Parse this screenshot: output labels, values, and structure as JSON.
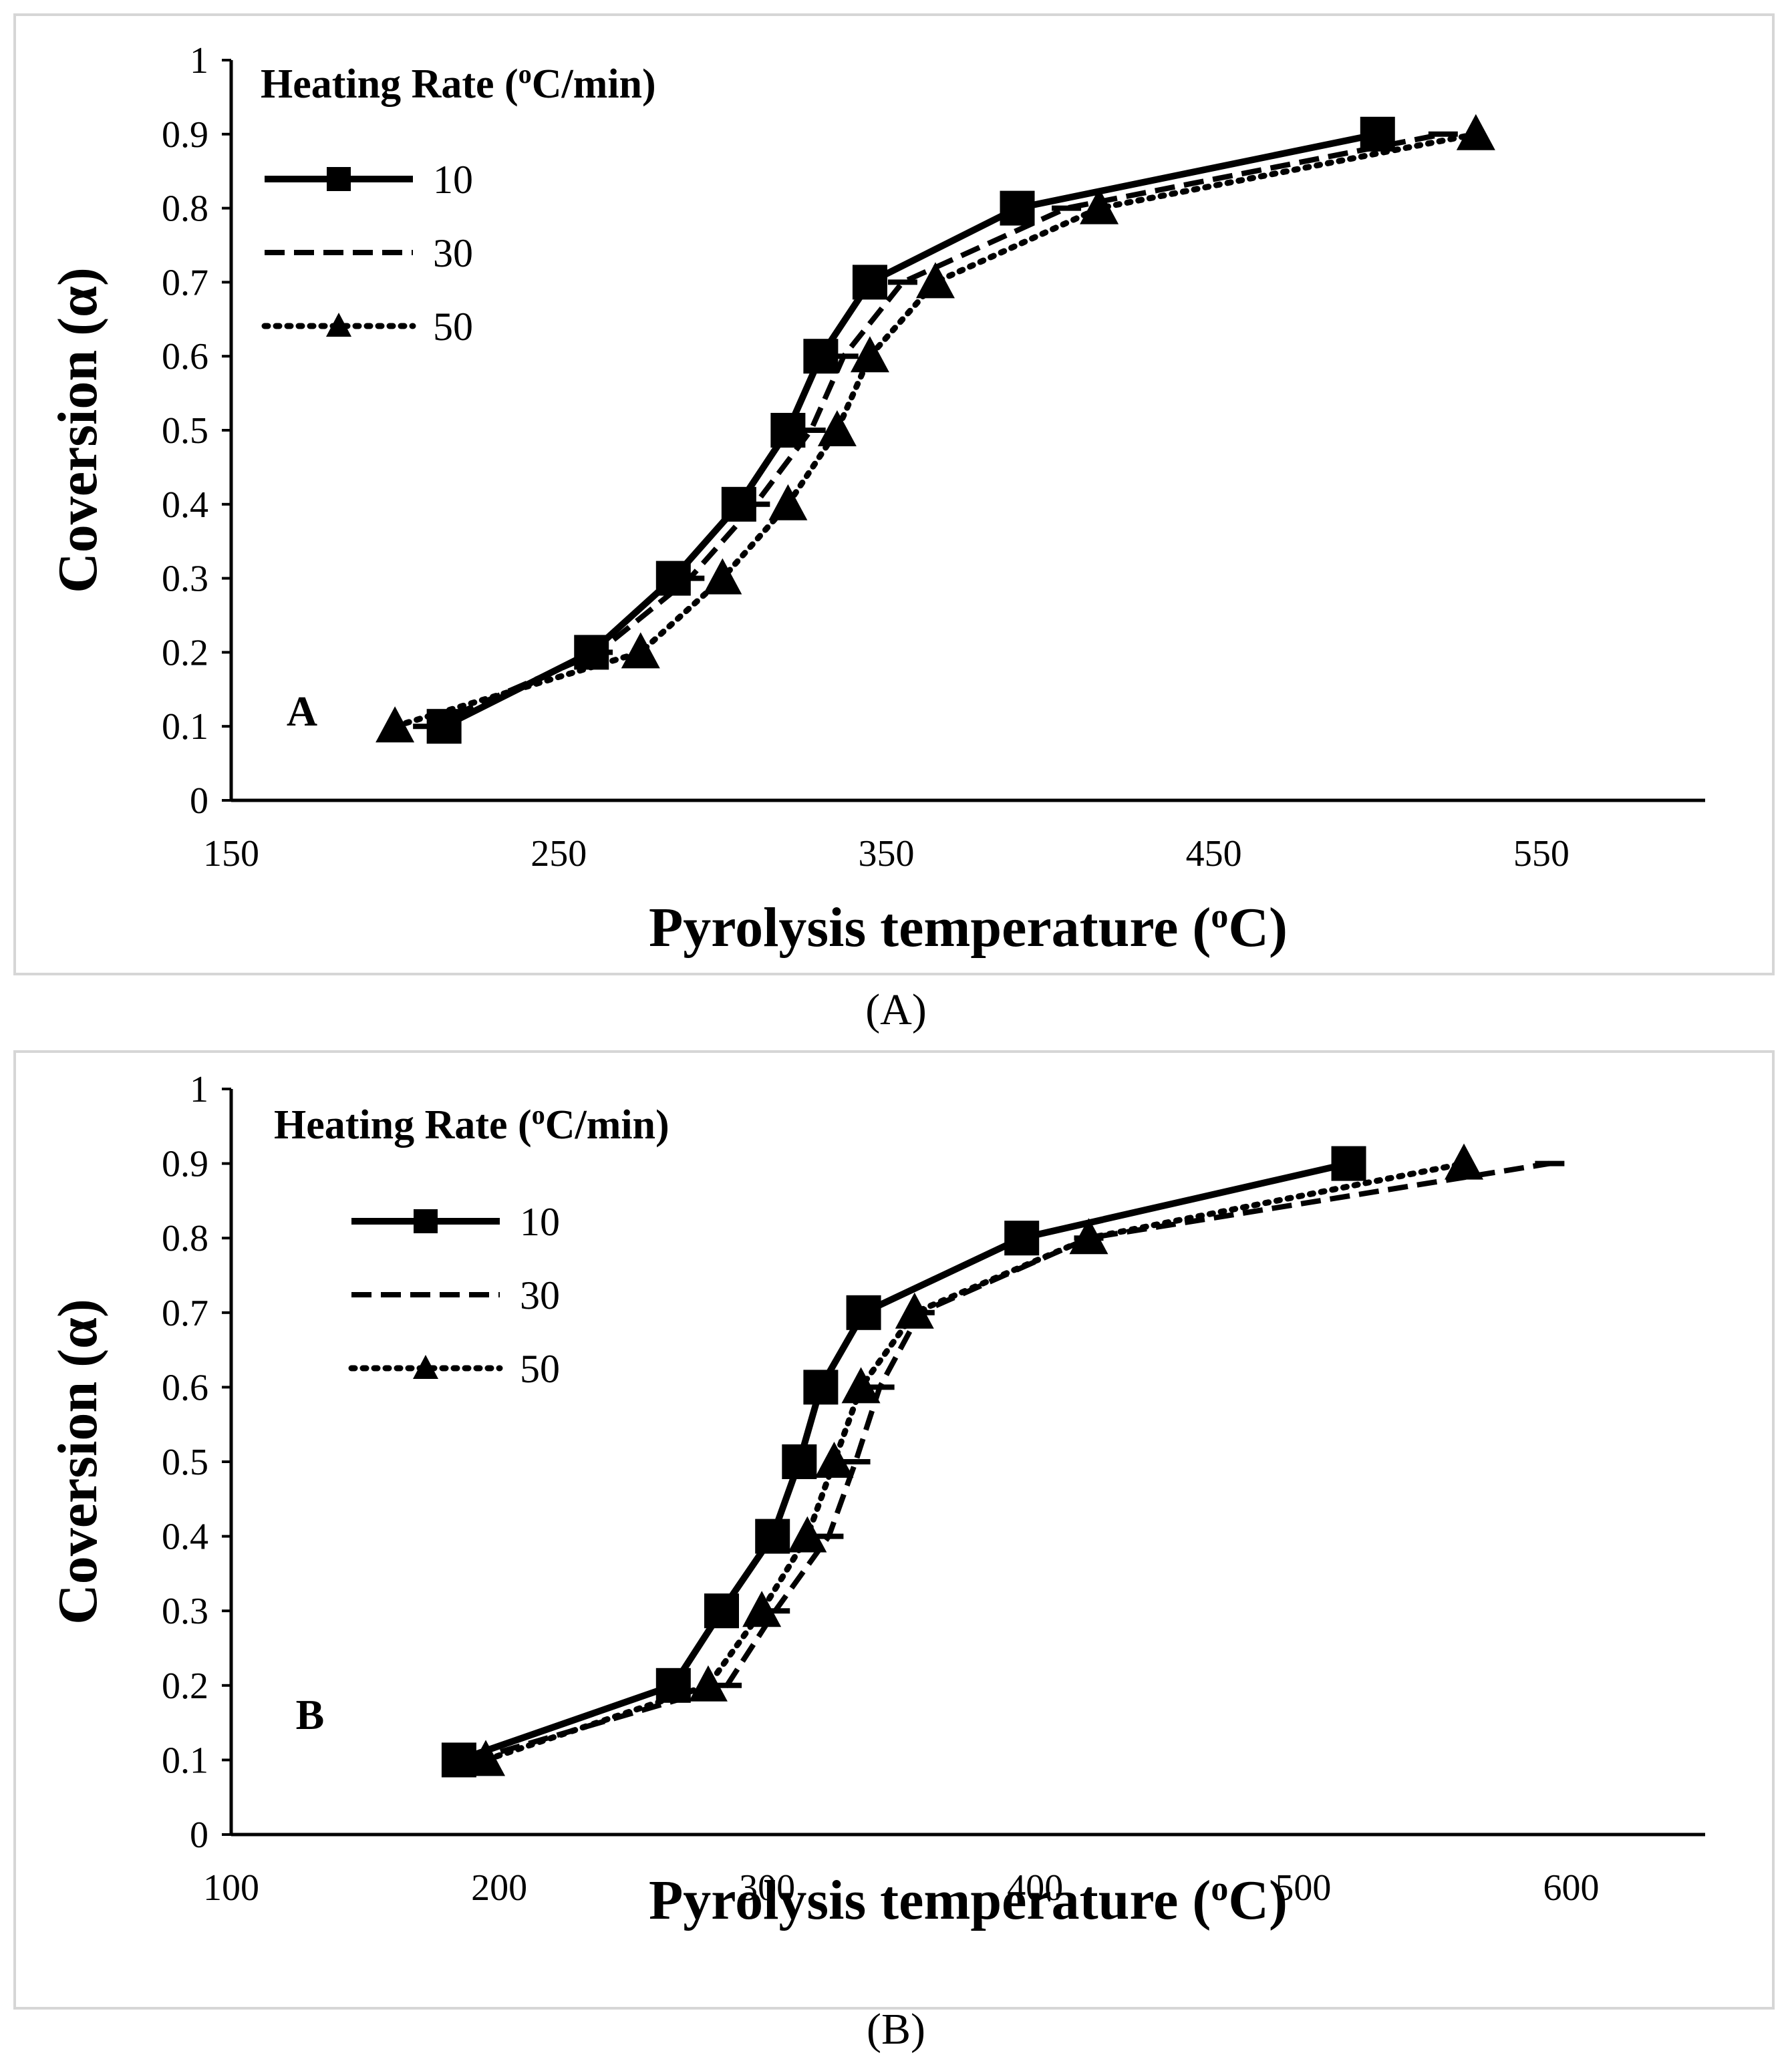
{
  "chart_data": [
    {
      "type": "line",
      "panel_label": "A",
      "caption": "(A)",
      "xlabel": "Pyrolysis temperature (",
      "xlabel_sup": "o",
      "xlabel_end": "C)",
      "ylabel": "Coversion  (α)",
      "xlim": [
        150,
        600
      ],
      "ylim": [
        0,
        1
      ],
      "xticks": [
        150,
        250,
        350,
        450,
        550
      ],
      "xtick_labels": [
        "150",
        "250",
        "350",
        "450",
        "550"
      ],
      "yticks": [
        0,
        0.1,
        0.2,
        0.3,
        0.4,
        0.5,
        0.6,
        0.7,
        0.8,
        0.9,
        1
      ],
      "ytick_labels": [
        "0",
        "0.1",
        "0.2",
        "0.3",
        "0.4",
        "0.5",
        "0.6",
        "0.7",
        "0.8",
        "0.9",
        "1"
      ],
      "legend_title": "Heating Rate  (",
      "legend_title_sup": "o",
      "legend_title_end": "C/min)",
      "legend_position": "top-left",
      "grid": false,
      "series": [
        {
          "name": "10",
          "style": "solid",
          "marker": "square",
          "x": [
            215,
            260,
            285,
            305,
            320,
            330,
            345,
            390,
            500
          ],
          "y": [
            0.1,
            0.2,
            0.3,
            0.4,
            0.5,
            0.6,
            0.7,
            0.8,
            0.9
          ]
        },
        {
          "name": "30",
          "style": "dashed",
          "marker": "dash",
          "x": [
            210,
            262,
            290,
            310,
            327,
            337,
            355,
            405,
            520
          ],
          "y": [
            0.1,
            0.2,
            0.3,
            0.4,
            0.5,
            0.6,
            0.7,
            0.8,
            0.9
          ]
        },
        {
          "name": "50",
          "style": "dotted",
          "marker": "triangle",
          "x": [
            200,
            275,
            300,
            320,
            335,
            345,
            365,
            415,
            530
          ],
          "y": [
            0.1,
            0.2,
            0.3,
            0.4,
            0.5,
            0.6,
            0.7,
            0.8,
            0.9
          ]
        }
      ]
    },
    {
      "type": "line",
      "panel_label": "B",
      "caption": "(B)",
      "xlabel": "Pyrolysis temperature (",
      "xlabel_sup": "o",
      "xlabel_end": "C)",
      "ylabel": "Coversion  (α)",
      "xlim": [
        100,
        650
      ],
      "ylim": [
        0,
        1
      ],
      "xticks": [
        100,
        200,
        300,
        400,
        500,
        600
      ],
      "xtick_labels": [
        "100",
        "200",
        "300",
        "400",
        "500",
        "600"
      ],
      "yticks": [
        0,
        0.1,
        0.2,
        0.3,
        0.4,
        0.5,
        0.6,
        0.7,
        0.8,
        0.9,
        1
      ],
      "ytick_labels": [
        "0",
        "0.1",
        "0.2",
        "0.3",
        "0.4",
        "0.5",
        "0.6",
        "0.7",
        "0.8",
        "0.9",
        "1"
      ],
      "legend_title": "Heating Rate  (",
      "legend_title_sup": "o",
      "legend_title_end": "C/min)",
      "legend_position": "top-left",
      "grid": false,
      "series": [
        {
          "name": "10",
          "style": "solid",
          "marker": "square",
          "x": [
            185,
            265,
            283,
            302,
            312,
            320,
            336,
            395,
            517
          ],
          "y": [
            0.1,
            0.2,
            0.3,
            0.4,
            0.5,
            0.6,
            0.7,
            0.8,
            0.9
          ]
        },
        {
          "name": "30",
          "style": "dashed",
          "marker": "dash",
          "x": [
            190,
            285,
            303,
            323,
            333,
            342,
            357,
            420,
            592
          ],
          "y": [
            0.1,
            0.2,
            0.3,
            0.4,
            0.5,
            0.6,
            0.7,
            0.8,
            0.9
          ]
        },
        {
          "name": "50",
          "style": "dotted",
          "marker": "triangle",
          "x": [
            195,
            278,
            298,
            315,
            325,
            335,
            355,
            420,
            560
          ],
          "y": [
            0.1,
            0.2,
            0.3,
            0.4,
            0.5,
            0.6,
            0.7,
            0.8,
            0.9
          ]
        }
      ]
    }
  ]
}
